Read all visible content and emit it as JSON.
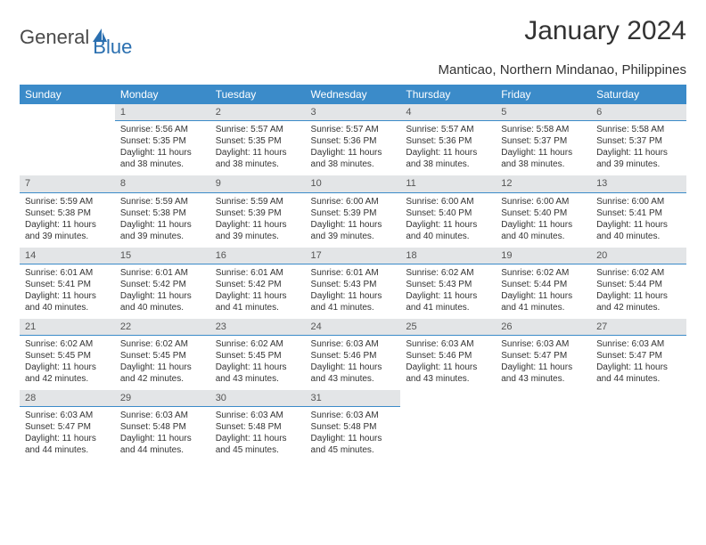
{
  "logo": {
    "text_general": "General",
    "text_blue": "Blue",
    "general_color": "#5a5a5a",
    "blue_color": "#2a6fb0",
    "icon_color": "#2a6fb0"
  },
  "title": "January 2024",
  "subtitle": "Manticao, Northern Mindanao, Philippines",
  "colors": {
    "header_bg": "#3b8bc9",
    "header_text": "#ffffff",
    "daynum_bg": "#e3e5e7",
    "daynum_border": "#3b8bc9",
    "body_text": "#333333",
    "background": "#ffffff"
  },
  "weekdays": [
    "Sunday",
    "Monday",
    "Tuesday",
    "Wednesday",
    "Thursday",
    "Friday",
    "Saturday"
  ],
  "weeks": [
    [
      null,
      {
        "n": "1",
        "sr": "5:56 AM",
        "ss": "5:35 PM",
        "dl1": "11 hours",
        "dl2": "and 38 minutes."
      },
      {
        "n": "2",
        "sr": "5:57 AM",
        "ss": "5:35 PM",
        "dl1": "11 hours",
        "dl2": "and 38 minutes."
      },
      {
        "n": "3",
        "sr": "5:57 AM",
        "ss": "5:36 PM",
        "dl1": "11 hours",
        "dl2": "and 38 minutes."
      },
      {
        "n": "4",
        "sr": "5:57 AM",
        "ss": "5:36 PM",
        "dl1": "11 hours",
        "dl2": "and 38 minutes."
      },
      {
        "n": "5",
        "sr": "5:58 AM",
        "ss": "5:37 PM",
        "dl1": "11 hours",
        "dl2": "and 38 minutes."
      },
      {
        "n": "6",
        "sr": "5:58 AM",
        "ss": "5:37 PM",
        "dl1": "11 hours",
        "dl2": "and 39 minutes."
      }
    ],
    [
      {
        "n": "7",
        "sr": "5:59 AM",
        "ss": "5:38 PM",
        "dl1": "11 hours",
        "dl2": "and 39 minutes."
      },
      {
        "n": "8",
        "sr": "5:59 AM",
        "ss": "5:38 PM",
        "dl1": "11 hours",
        "dl2": "and 39 minutes."
      },
      {
        "n": "9",
        "sr": "5:59 AM",
        "ss": "5:39 PM",
        "dl1": "11 hours",
        "dl2": "and 39 minutes."
      },
      {
        "n": "10",
        "sr": "6:00 AM",
        "ss": "5:39 PM",
        "dl1": "11 hours",
        "dl2": "and 39 minutes."
      },
      {
        "n": "11",
        "sr": "6:00 AM",
        "ss": "5:40 PM",
        "dl1": "11 hours",
        "dl2": "and 40 minutes."
      },
      {
        "n": "12",
        "sr": "6:00 AM",
        "ss": "5:40 PM",
        "dl1": "11 hours",
        "dl2": "and 40 minutes."
      },
      {
        "n": "13",
        "sr": "6:00 AM",
        "ss": "5:41 PM",
        "dl1": "11 hours",
        "dl2": "and 40 minutes."
      }
    ],
    [
      {
        "n": "14",
        "sr": "6:01 AM",
        "ss": "5:41 PM",
        "dl1": "11 hours",
        "dl2": "and 40 minutes."
      },
      {
        "n": "15",
        "sr": "6:01 AM",
        "ss": "5:42 PM",
        "dl1": "11 hours",
        "dl2": "and 40 minutes."
      },
      {
        "n": "16",
        "sr": "6:01 AM",
        "ss": "5:42 PM",
        "dl1": "11 hours",
        "dl2": "and 41 minutes."
      },
      {
        "n": "17",
        "sr": "6:01 AM",
        "ss": "5:43 PM",
        "dl1": "11 hours",
        "dl2": "and 41 minutes."
      },
      {
        "n": "18",
        "sr": "6:02 AM",
        "ss": "5:43 PM",
        "dl1": "11 hours",
        "dl2": "and 41 minutes."
      },
      {
        "n": "19",
        "sr": "6:02 AM",
        "ss": "5:44 PM",
        "dl1": "11 hours",
        "dl2": "and 41 minutes."
      },
      {
        "n": "20",
        "sr": "6:02 AM",
        "ss": "5:44 PM",
        "dl1": "11 hours",
        "dl2": "and 42 minutes."
      }
    ],
    [
      {
        "n": "21",
        "sr": "6:02 AM",
        "ss": "5:45 PM",
        "dl1": "11 hours",
        "dl2": "and 42 minutes."
      },
      {
        "n": "22",
        "sr": "6:02 AM",
        "ss": "5:45 PM",
        "dl1": "11 hours",
        "dl2": "and 42 minutes."
      },
      {
        "n": "23",
        "sr": "6:02 AM",
        "ss": "5:45 PM",
        "dl1": "11 hours",
        "dl2": "and 43 minutes."
      },
      {
        "n": "24",
        "sr": "6:03 AM",
        "ss": "5:46 PM",
        "dl1": "11 hours",
        "dl2": "and 43 minutes."
      },
      {
        "n": "25",
        "sr": "6:03 AM",
        "ss": "5:46 PM",
        "dl1": "11 hours",
        "dl2": "and 43 minutes."
      },
      {
        "n": "26",
        "sr": "6:03 AM",
        "ss": "5:47 PM",
        "dl1": "11 hours",
        "dl2": "and 43 minutes."
      },
      {
        "n": "27",
        "sr": "6:03 AM",
        "ss": "5:47 PM",
        "dl1": "11 hours",
        "dl2": "and 44 minutes."
      }
    ],
    [
      {
        "n": "28",
        "sr": "6:03 AM",
        "ss": "5:47 PM",
        "dl1": "11 hours",
        "dl2": "and 44 minutes."
      },
      {
        "n": "29",
        "sr": "6:03 AM",
        "ss": "5:48 PM",
        "dl1": "11 hours",
        "dl2": "and 44 minutes."
      },
      {
        "n": "30",
        "sr": "6:03 AM",
        "ss": "5:48 PM",
        "dl1": "11 hours",
        "dl2": "and 45 minutes."
      },
      {
        "n": "31",
        "sr": "6:03 AM",
        "ss": "5:48 PM",
        "dl1": "11 hours",
        "dl2": "and 45 minutes."
      },
      null,
      null,
      null
    ]
  ],
  "labels": {
    "sunrise": "Sunrise:",
    "sunset": "Sunset:",
    "daylight": "Daylight:"
  }
}
